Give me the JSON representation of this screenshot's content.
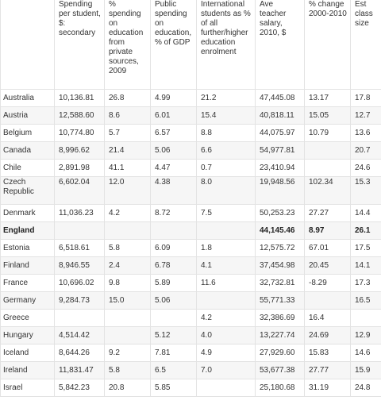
{
  "table": {
    "headers": [
      "",
      "Spending per student, $: secondary",
      "% spending on education from private sources, 2009",
      "Public spending on education, % of GDP",
      "International students as % of all further/higher education enrolment",
      "Ave teacher salary, 2010, $",
      "% change 2000-2010",
      "Est class size"
    ],
    "rows": [
      [
        "Australia",
        "10,136.81",
        "26.8",
        "4.99",
        "21.2",
        "47,445.08",
        "13.17",
        "17.8"
      ],
      [
        "Austria",
        "12,588.60",
        "8.6",
        "6.01",
        "15.4",
        "40,818.11",
        "15.05",
        "12.7"
      ],
      [
        "Belgium",
        "10,774.80",
        "5.7",
        "6.57",
        "8.8",
        "44,075.97",
        "10.79",
        "13.6"
      ],
      [
        "Canada",
        "8,996.62",
        "21.4",
        "5.06",
        "6.6",
        "54,977.81",
        "",
        "20.7"
      ],
      [
        "Chile",
        "2,891.98",
        "41.1",
        "4.47",
        "0.7",
        "23,410.94",
        "",
        "24.6"
      ],
      [
        "Czech Republic",
        "6,602.04",
        "12.0",
        "4.38",
        "8.0",
        "19,948.56",
        "102.34",
        "15.3"
      ],
      [
        "Denmark",
        "11,036.23",
        "4.2",
        "8.72",
        "7.5",
        "50,253.23",
        "27.27",
        "14.4"
      ],
      [
        "England",
        "",
        "",
        "",
        "",
        "44,145.46",
        "8.97",
        "26.1"
      ],
      [
        "Estonia",
        "6,518.61",
        "5.8",
        "6.09",
        "1.8",
        "12,575.72",
        "67.01",
        "17.5"
      ],
      [
        "Finland",
        "8,946.55",
        "2.4",
        "6.78",
        "4.1",
        "37,454.98",
        "20.45",
        "14.1"
      ],
      [
        "France",
        "10,696.02",
        "9.8",
        "5.89",
        "11.6",
        "32,732.81",
        "-8.29",
        "17.3"
      ],
      [
        "Germany",
        "9,284.73",
        "15.0",
        "5.06",
        "",
        "55,771.33",
        "",
        "16.5"
      ],
      [
        "Greece",
        "",
        "",
        "",
        "4.2",
        "32,386.69",
        "16.4",
        ""
      ],
      [
        "Hungary",
        "4,514.42",
        "",
        "5.12",
        "4.0",
        "13,227.74",
        "24.69",
        "12.9"
      ],
      [
        "Iceland",
        "8,644.26",
        "9.2",
        "7.81",
        "4.9",
        "27,929.60",
        "15.83",
        "14.6"
      ],
      [
        "Ireland",
        "11,831.47",
        "5.8",
        "6.5",
        "7.0",
        "53,677.38",
        "27.77",
        "15.9"
      ],
      [
        "Israel",
        "5,842.23",
        "20.8",
        "5.85",
        "",
        "25,180.68",
        "31.19",
        "24.8"
      ]
    ]
  }
}
